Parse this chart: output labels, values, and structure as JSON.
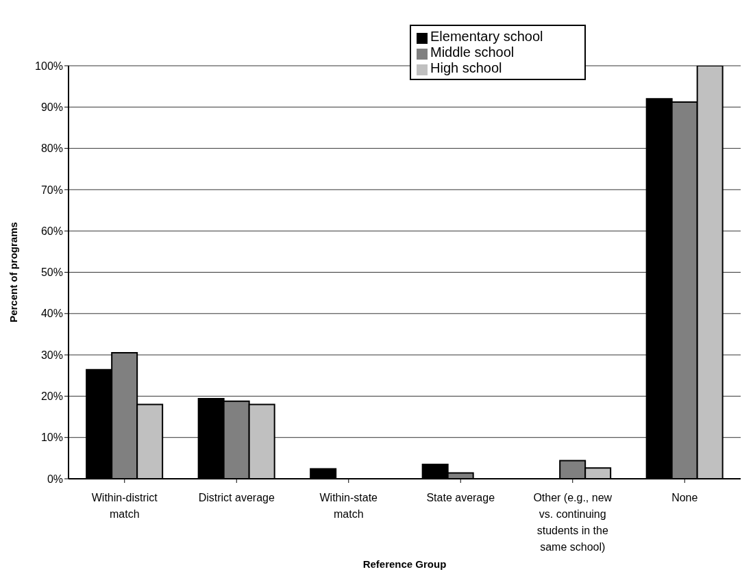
{
  "chart_data": {
    "type": "bar",
    "xlabel": "Reference Group",
    "ylabel": "Percent of programs",
    "categories": [
      "Within-district match",
      "District average",
      "Within-state match",
      "State average",
      "Other (e.g., new vs. continuing students in the same school)",
      "None"
    ],
    "series": [
      {
        "name": "Elementary school",
        "color": "#000000",
        "values": [
          26.4,
          19.4,
          2.4,
          3.5,
          0,
          92.0
        ]
      },
      {
        "name": "Middle school",
        "color": "#808080",
        "values": [
          30.5,
          18.8,
          0,
          1.4,
          4.4,
          91.2
        ]
      },
      {
        "name": "High school",
        "color": "#c0c0c0",
        "values": [
          18.0,
          18.0,
          0,
          0,
          2.6,
          100
        ]
      }
    ],
    "ylim": [
      0,
      100
    ],
    "yticks": [
      {
        "value": 0,
        "label": "0%"
      },
      {
        "value": 10,
        "label": "10%"
      },
      {
        "value": 20,
        "label": "20%"
      },
      {
        "value": 30,
        "label": "30%"
      },
      {
        "value": 40,
        "label": "40%"
      },
      {
        "value": 50,
        "label": "50%"
      },
      {
        "value": 60,
        "label": "60%"
      },
      {
        "value": 70,
        "label": "70%"
      },
      {
        "value": 80,
        "label": "80%"
      },
      {
        "value": 90,
        "label": "90%"
      },
      {
        "value": 100,
        "label": "100%"
      }
    ],
    "grid": "y",
    "legend": "top"
  }
}
